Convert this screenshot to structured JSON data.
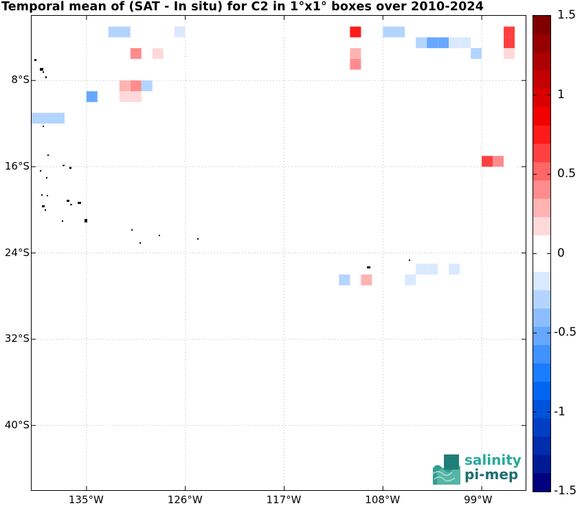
{
  "title": "Temporal mean of (SAT - In situ) for C2 in 1°x1° boxes over 2010-2024",
  "map": {
    "lon_range": [
      -140,
      -95
    ],
    "lat_range": [
      -46,
      -2
    ],
    "y_tick_labels": [
      {
        "lat": -8,
        "label": "8°S"
      },
      {
        "lat": -16,
        "label": "16°S"
      },
      {
        "lat": -24,
        "label": "24°S"
      },
      {
        "lat": -32,
        "label": "32°S"
      },
      {
        "lat": -40,
        "label": "40°S"
      }
    ],
    "x_tick_labels": [
      {
        "lon": -135,
        "label": "135°W"
      },
      {
        "lon": -126,
        "label": "126°W"
      },
      {
        "lon": -117,
        "label": "117°W"
      },
      {
        "lon": -108,
        "label": "108°W"
      },
      {
        "lon": -99,
        "label": "99°W"
      }
    ],
    "grid": "dotted",
    "land_color": "#000000"
  },
  "colorbar": {
    "range": [
      -1.5,
      1.5
    ],
    "labels": [
      "1.5",
      "1",
      "0.5",
      "0",
      "-0.5",
      "-1",
      "-1.5"
    ],
    "colors": [
      "#7f0000",
      "#960000",
      "#ad0000",
      "#c40000",
      "#db0000",
      "#f20000",
      "#ff1a1a",
      "#ff4040",
      "#ff6666",
      "#ff8c8c",
      "#ffb3b3",
      "#ffd9d9",
      "#ffffff",
      "#ffffff",
      "#d9e9ff",
      "#b3d4ff",
      "#8cbeff",
      "#66a8ff",
      "#4092ff",
      "#1a7cff",
      "#0066f2",
      "#0052db",
      "#003fc4",
      "#002cad",
      "#001a96",
      "#00007f"
    ]
  },
  "chart_data": {
    "type": "heatmap",
    "title": "Temporal mean of (SAT - In situ) for C2 in 1°x1° boxes over 2010-2024",
    "x_axis": "longitude",
    "y_axis": "latitude",
    "cells": [
      {
        "lon": -138.5,
        "lat": -3.5,
        "value": -0.1
      },
      {
        "lon": -133.5,
        "lat": -3.5,
        "value": -0.1
      },
      {
        "lon": -132.5,
        "lat": -3.5,
        "value": -0.3
      },
      {
        "lon": -131.5,
        "lat": -3.5,
        "value": -0.3
      },
      {
        "lon": -130.5,
        "lat": -3.5,
        "value": -0.1
      },
      {
        "lon": -129.5,
        "lat": -3.5,
        "value": -0.1
      },
      {
        "lon": -128.5,
        "lat": -3.5,
        "value": -0.1
      },
      {
        "lon": -127.5,
        "lat": -3.5,
        "value": -0.1
      },
      {
        "lon": -126.5,
        "lat": -3.5,
        "value": -0.2
      },
      {
        "lon": -125.5,
        "lat": -3.5,
        "value": -0.1
      },
      {
        "lon": -124.5,
        "lat": -3.5,
        "value": 0.1
      },
      {
        "lon": -116.5,
        "lat": -3.5,
        "value": -0.1
      },
      {
        "lon": -114.5,
        "lat": -3.5,
        "value": -0.1
      },
      {
        "lon": -110.5,
        "lat": -3.5,
        "value": 0.75
      },
      {
        "lon": -108.5,
        "lat": -3.5,
        "value": -0.1
      },
      {
        "lon": -107.5,
        "lat": -3.5,
        "value": -0.3
      },
      {
        "lon": -106.5,
        "lat": -3.5,
        "value": -0.3
      },
      {
        "lon": -105.5,
        "lat": -3.5,
        "value": -0.1
      },
      {
        "lon": -96.5,
        "lat": -3.5,
        "value": 0.6
      },
      {
        "lon": -129.5,
        "lat": -4.5,
        "value": 0.1
      },
      {
        "lon": -104.5,
        "lat": -4.5,
        "value": -0.3
      },
      {
        "lon": -103.5,
        "lat": -4.5,
        "value": -0.5
      },
      {
        "lon": -102.5,
        "lat": -4.5,
        "value": -0.5
      },
      {
        "lon": -101.5,
        "lat": -4.5,
        "value": -0.2
      },
      {
        "lon": -100.5,
        "lat": -4.5,
        "value": -0.2
      },
      {
        "lon": -114.5,
        "lat": -4.5,
        "value": -0.1
      },
      {
        "lon": -96.5,
        "lat": -4.5,
        "value": 0.6
      },
      {
        "lon": -130.5,
        "lat": -5.5,
        "value": 0.4
      },
      {
        "lon": -128.5,
        "lat": -5.5,
        "value": 0.2
      },
      {
        "lon": -110.5,
        "lat": -5.5,
        "value": 0.3
      },
      {
        "lon": -99.5,
        "lat": -5.5,
        "value": -0.3
      },
      {
        "lon": -98.5,
        "lat": -5.5,
        "value": -0.1
      },
      {
        "lon": -97.5,
        "lat": -5.5,
        "value": -0.1
      },
      {
        "lon": -96.5,
        "lat": -5.5,
        "value": 0.2
      },
      {
        "lon": -125.5,
        "lat": -6.5,
        "value": -0.1
      },
      {
        "lon": -110.5,
        "lat": -6.5,
        "value": 0.4
      },
      {
        "lon": -96.5,
        "lat": -6.5,
        "value": 0.1
      },
      {
        "lon": -128.5,
        "lat": -7.5,
        "value": 0.1
      },
      {
        "lon": -127.5,
        "lat": -7.5,
        "value": 0.1
      },
      {
        "lon": -131.5,
        "lat": -8.5,
        "value": 0.3
      },
      {
        "lon": -130.5,
        "lat": -8.5,
        "value": 0.4
      },
      {
        "lon": -129.5,
        "lat": -8.5,
        "value": -0.3
      },
      {
        "lon": -134.5,
        "lat": -9.5,
        "value": -0.5
      },
      {
        "lon": -133.5,
        "lat": -9.5,
        "value": -0.1
      },
      {
        "lon": -132.5,
        "lat": -9.5,
        "value": -0.1
      },
      {
        "lon": -131.5,
        "lat": -9.5,
        "value": 0.2
      },
      {
        "lon": -130.5,
        "lat": -9.5,
        "value": 0.2
      },
      {
        "lon": -137.5,
        "lat": -10.5,
        "value": -0.1
      },
      {
        "lon": -139.5,
        "lat": -11.5,
        "value": -0.3
      },
      {
        "lon": -138.5,
        "lat": -11.5,
        "value": -0.3
      },
      {
        "lon": -137.5,
        "lat": -11.5,
        "value": -0.3
      },
      {
        "lon": -98.5,
        "lat": -15.5,
        "value": 0.6
      },
      {
        "lon": -97.5,
        "lat": -15.5,
        "value": 0.4
      },
      {
        "lon": -96.5,
        "lat": -15.5,
        "value": 0.1
      },
      {
        "lon": -96.5,
        "lat": -16.5,
        "value": 0.1
      },
      {
        "lon": -104.5,
        "lat": -25.5,
        "value": -0.2
      },
      {
        "lon": -103.5,
        "lat": -25.5,
        "value": -0.2
      },
      {
        "lon": -101.5,
        "lat": -25.5,
        "value": -0.2
      },
      {
        "lon": -100.5,
        "lat": -25.5,
        "value": -0.1
      },
      {
        "lon": -111.5,
        "lat": -26.5,
        "value": -0.3
      },
      {
        "lon": -109.5,
        "lat": -26.5,
        "value": 0.3
      },
      {
        "lon": -107.5,
        "lat": -26.5,
        "value": -0.1
      },
      {
        "lon": -105.5,
        "lat": -26.5,
        "value": -0.2
      },
      {
        "lon": -110.5,
        "lat": -27.5,
        "value": 0.1
      }
    ]
  },
  "logo": {
    "line1": "salinity",
    "line2": "pi-mep"
  }
}
